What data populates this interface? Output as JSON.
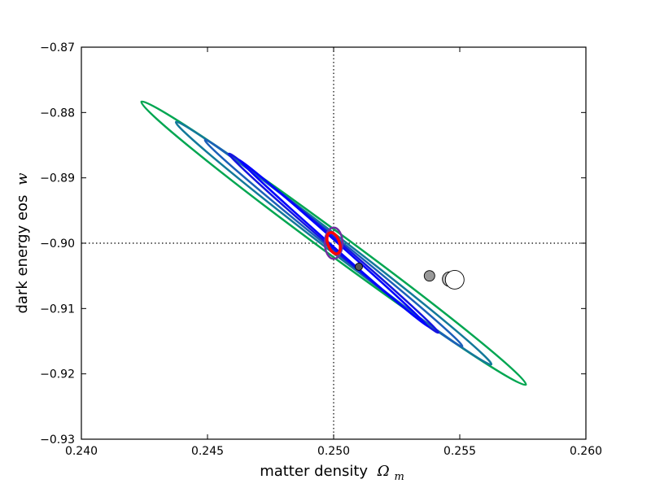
{
  "chart_data": {
    "type": "line",
    "xlabel": "matter density",
    "xlabel_symbol": "Ω",
    "xlabel_subscript": "m",
    "ylabel": "dark energy eos",
    "ylabel_symbol": "w",
    "xlim": [
      0.24,
      0.26
    ],
    "ylim": [
      -0.93,
      -0.87
    ],
    "xticks": [
      0.24,
      0.245,
      0.25,
      0.255,
      0.26
    ],
    "xtick_labels": [
      "0.240",
      "0.245",
      "0.250",
      "0.255",
      "0.260"
    ],
    "yticks": [
      -0.93,
      -0.92,
      -0.91,
      -0.9,
      -0.89,
      -0.88,
      -0.87
    ],
    "ytick_labels": [
      "−0.93",
      "−0.92",
      "−0.91",
      "−0.90",
      "−0.89",
      "−0.88",
      "−0.87"
    ],
    "grid": false,
    "reference_lines": {
      "x": 0.25,
      "y": -0.9,
      "style": "dotted"
    },
    "ellipses": [
      {
        "color": "#00a651",
        "center": [
          0.25,
          -0.9
        ],
        "tips": [
          [
            0.24238,
            -0.87835
          ],
          [
            0.25762,
            -0.92165
          ]
        ],
        "half_width": 0.00045
      },
      {
        "color": "#13799a",
        "center": [
          0.25,
          -0.9
        ],
        "tips": [
          [
            0.24375,
            -0.88145
          ],
          [
            0.25625,
            -0.91855
          ]
        ],
        "half_width": 0.00032
      },
      {
        "color": "#1b5fb8",
        "center": [
          0.25,
          -0.9
        ],
        "tips": [
          [
            0.2449,
            -0.8842
          ],
          [
            0.2551,
            -0.9158
          ]
        ],
        "half_width": 0.00024
      },
      {
        "color": "#1515e0",
        "center": [
          0.25,
          -0.9
        ],
        "tips": [
          [
            0.24585,
            -0.8863
          ],
          [
            0.25415,
            -0.9137
          ]
        ],
        "half_width": 0.00018
      },
      {
        "color": "#0000ff",
        "center": [
          0.25,
          -0.9
        ],
        "tips": [
          [
            0.24625,
            -0.8872
          ],
          [
            0.25375,
            -0.9128
          ]
        ],
        "half_width": 0.00011
      },
      {
        "color": "#7030a0",
        "center": [
          0.25,
          -0.9
        ],
        "tips": [
          [
            0.25,
            -0.8976
          ],
          [
            0.25,
            -0.9024
          ]
        ],
        "half_width": 0.00035
      },
      {
        "color": "#ff0000",
        "center": [
          0.25,
          -0.9
        ],
        "tips": [
          [
            0.24985,
            -0.8984
          ],
          [
            0.25015,
            -0.9016
          ]
        ],
        "half_width": 0.00023,
        "width": 3.5
      }
    ],
    "points": [
      {
        "x": 0.251,
        "y": -0.9036,
        "size": "small",
        "fill": "#555555"
      },
      {
        "x": 0.2538,
        "y": -0.905,
        "size": "medium",
        "fill": "#999999"
      },
      {
        "x": 0.2546,
        "y": -0.9055,
        "size": "large",
        "fill": "#bbbbbb"
      },
      {
        "x": 0.2548,
        "y": -0.9056,
        "size": "xlarge",
        "fill": "#ffffff"
      }
    ]
  }
}
